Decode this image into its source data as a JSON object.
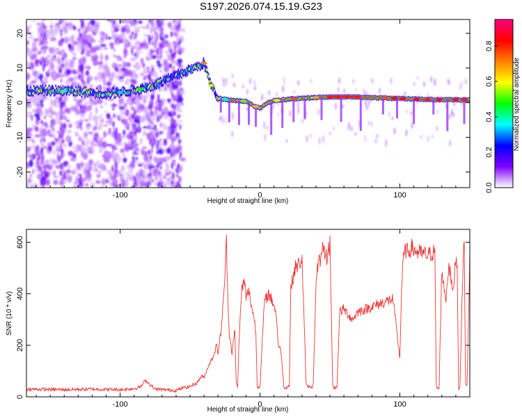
{
  "title": "S197.2026.074.15.19.G23",
  "chart_data": [
    {
      "type": "heatmap",
      "name": "spectrogram",
      "xlabel": "Height of straight line (km)",
      "ylabel": "Frequency (Hz)",
      "xlim": [
        -167,
        150
      ],
      "ylim": [
        -24.5,
        24
      ],
      "xticks": [
        -100,
        0,
        100
      ],
      "yticks": [
        -20,
        -10,
        0,
        10,
        20
      ],
      "ridge": {
        "x": [
          -167,
          -150,
          -130,
          -110,
          -100,
          -90,
          -80,
          -70,
          -60,
          -50,
          -45,
          -40,
          -35,
          -30,
          -25,
          -20,
          -10,
          -5,
          0,
          5,
          10,
          20,
          40,
          60,
          80,
          100,
          120,
          150
        ],
        "frequency_hz": [
          3.3,
          3.5,
          3.2,
          2.6,
          3.0,
          3.6,
          4.4,
          6.0,
          7.8,
          9.5,
          10.3,
          11.4,
          5.0,
          1.3,
          1.0,
          0.7,
          0.4,
          -0.8,
          -1.6,
          -0.2,
          0.6,
          1.0,
          1.5,
          1.7,
          1.5,
          1.2,
          0.9,
          0.8
        ]
      },
      "colorbar": {
        "label": "Normalized spectral amplitude",
        "range": [
          0,
          0.95
        ],
        "ticks": [
          "0.0",
          "0.2",
          "0.4",
          "0.6",
          "0.8"
        ],
        "colors": [
          "#ffffff",
          "#7f00ff",
          "#0000ff",
          "#00ffff",
          "#00ff00",
          "#ffff00",
          "#ff7f00",
          "#ff0000",
          "#ff0080"
        ]
      }
    },
    {
      "type": "line",
      "name": "snr",
      "xlabel": "Height of straight line (km)",
      "ylabel": "SNR (10 * v/v)",
      "xlim": [
        -167,
        150
      ],
      "ylim": [
        0,
        650
      ],
      "xticks": [
        -100,
        0,
        100
      ],
      "yticks": [
        0,
        200,
        400,
        600
      ],
      "color": "#ee3333",
      "series": [
        {
          "name": "SNR",
          "x": [
            -167,
            -140,
            -120,
            -100,
            -90,
            -85,
            -82,
            -80,
            -75,
            -60,
            -55,
            -50,
            -45,
            -42,
            -40,
            -37,
            -34,
            -31,
            -30,
            -28,
            -26,
            -24,
            -23,
            -22,
            -20,
            -18,
            -17,
            -16,
            -15,
            -13,
            -11,
            -10,
            -9,
            -8,
            -6,
            -4,
            -3,
            -2,
            0,
            3,
            5,
            6,
            8,
            10,
            12,
            13,
            15,
            17,
            18,
            20,
            21,
            22,
            25,
            27,
            30,
            31,
            33,
            35,
            38,
            40,
            42,
            43,
            45,
            46,
            48,
            50,
            52,
            53,
            55,
            57,
            60,
            63,
            66,
            70,
            75,
            80,
            85,
            90,
            95,
            100,
            101,
            102,
            104,
            106,
            108,
            110,
            113,
            117,
            120,
            124,
            125,
            126,
            128,
            130,
            131,
            133,
            135,
            138,
            140,
            141,
            142,
            143,
            145,
            146,
            147,
            148,
            150
          ],
          "y": [
            30,
            28,
            30,
            28,
            32,
            40,
            65,
            55,
            30,
            25,
            35,
            40,
            55,
            80,
            75,
            120,
            150,
            200,
            170,
            250,
            380,
            600,
            380,
            250,
            170,
            260,
            50,
            40,
            220,
            420,
            450,
            380,
            400,
            410,
            350,
            300,
            250,
            40,
            40,
            360,
            390,
            400,
            380,
            360,
            300,
            200,
            180,
            40,
            35,
            40,
            45,
            420,
            500,
            510,
            530,
            380,
            45,
            40,
            40,
            420,
            560,
            500,
            580,
            560,
            540,
            600,
            40,
            35,
            38,
            330,
            340,
            320,
            300,
            330,
            340,
            350,
            360,
            370,
            380,
            150,
            380,
            520,
            570,
            560,
            580,
            570,
            560,
            555,
            550,
            560,
            580,
            40,
            30,
            500,
            440,
            380,
            520,
            400,
            550,
            500,
            30,
            45,
            500,
            600,
            50,
            40,
            560
          ]
        }
      ]
    }
  ]
}
